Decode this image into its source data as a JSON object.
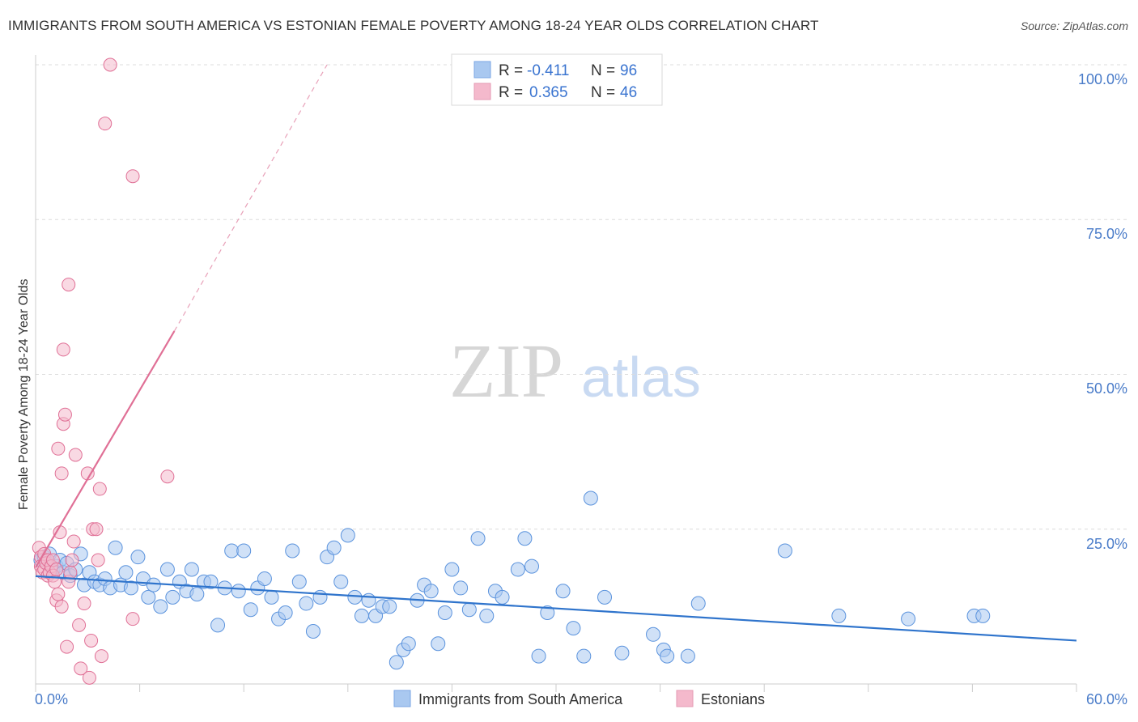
{
  "title": "IMMIGRANTS FROM SOUTH AMERICA VS ESTONIAN FEMALE POVERTY AMONG 18-24 YEAR OLDS CORRELATION CHART",
  "source": "Source: ZipAtlas.com",
  "watermark": {
    "zip": "ZIP",
    "atlas": "atlas"
  },
  "colors": {
    "blue": "#5b93dd",
    "blue_fill": "#a9c8f0",
    "pink": "#e07096",
    "pink_fill": "#f4b9cc",
    "tick": "#4a7cc9",
    "grid": "#dddddd"
  },
  "legend": {
    "rows": [
      {
        "r_label": "R =",
        "r_value": "-0.411",
        "n_label": "N =",
        "n_value": "96"
      },
      {
        "r_label": "R =",
        "r_value": "0.365",
        "n_label": "N =",
        "n_value": "46"
      }
    ]
  },
  "bottom_legend": [
    "Immigrants from South America",
    "Estonians"
  ],
  "chart_data": {
    "type": "scatter",
    "title": "IMMIGRANTS FROM SOUTH AMERICA VS ESTONIAN FEMALE POVERTY AMONG 18-24 YEAR OLDS CORRELATION CHART",
    "xlabel": "",
    "ylabel": "Female Poverty Among 18-24 Year Olds",
    "xlim": [
      0,
      60
    ],
    "ylim": [
      0,
      100
    ],
    "x_tick_labels": [
      "0.0%",
      "60.0%"
    ],
    "y_tick_values": [
      25,
      50,
      75,
      100
    ],
    "y_tick_labels": [
      "25.0%",
      "50.0%",
      "75.0%",
      "100.0%"
    ],
    "series": [
      {
        "name": "Immigrants from South America",
        "r": -0.411,
        "n": 96,
        "trend": {
          "x0": 0,
          "y0": 17.4,
          "x1": 60,
          "y1": 7.0
        },
        "points": [
          [
            0.3,
            20.0
          ],
          [
            0.5,
            20.5
          ],
          [
            0.7,
            19.5
          ],
          [
            0.8,
            21.0
          ],
          [
            1.0,
            18.5
          ],
          [
            1.2,
            19.0
          ],
          [
            1.4,
            20.0
          ],
          [
            1.6,
            18.0
          ],
          [
            1.8,
            19.5
          ],
          [
            2.0,
            17.5
          ],
          [
            2.3,
            18.5
          ],
          [
            2.6,
            21.0
          ],
          [
            2.8,
            16.0
          ],
          [
            3.1,
            18.0
          ],
          [
            3.4,
            16.5
          ],
          [
            3.7,
            16.0
          ],
          [
            4.0,
            17.0
          ],
          [
            4.3,
            15.5
          ],
          [
            4.6,
            22.0
          ],
          [
            4.9,
            16.0
          ],
          [
            5.2,
            18.0
          ],
          [
            5.5,
            15.5
          ],
          [
            5.9,
            20.5
          ],
          [
            6.2,
            17.0
          ],
          [
            6.5,
            14.0
          ],
          [
            6.8,
            16.0
          ],
          [
            7.2,
            12.5
          ],
          [
            7.6,
            18.5
          ],
          [
            7.9,
            14.0
          ],
          [
            8.3,
            16.5
          ],
          [
            8.7,
            15.0
          ],
          [
            9.0,
            18.5
          ],
          [
            9.3,
            14.5
          ],
          [
            9.7,
            16.5
          ],
          [
            10.1,
            16.5
          ],
          [
            10.5,
            9.5
          ],
          [
            10.9,
            15.5
          ],
          [
            11.3,
            21.5
          ],
          [
            11.7,
            15.0
          ],
          [
            12.0,
            21.5
          ],
          [
            12.4,
            12.0
          ],
          [
            12.8,
            15.5
          ],
          [
            13.2,
            17.0
          ],
          [
            13.6,
            14.0
          ],
          [
            14.0,
            10.5
          ],
          [
            14.4,
            11.5
          ],
          [
            14.8,
            21.5
          ],
          [
            15.2,
            16.5
          ],
          [
            15.6,
            13.0
          ],
          [
            16.0,
            8.5
          ],
          [
            16.4,
            14.0
          ],
          [
            16.8,
            20.5
          ],
          [
            17.2,
            22.0
          ],
          [
            17.6,
            16.5
          ],
          [
            18.0,
            24.0
          ],
          [
            18.4,
            14.0
          ],
          [
            18.8,
            11.0
          ],
          [
            19.2,
            13.5
          ],
          [
            19.6,
            11.0
          ],
          [
            20.0,
            12.5
          ],
          [
            20.4,
            12.5
          ],
          [
            20.8,
            3.5
          ],
          [
            21.2,
            5.5
          ],
          [
            21.5,
            6.5
          ],
          [
            22.0,
            13.5
          ],
          [
            22.4,
            16.0
          ],
          [
            22.8,
            15.0
          ],
          [
            23.2,
            6.5
          ],
          [
            23.6,
            11.5
          ],
          [
            24.0,
            18.5
          ],
          [
            24.5,
            15.5
          ],
          [
            25.0,
            12.0
          ],
          [
            25.5,
            23.5
          ],
          [
            26.0,
            11.0
          ],
          [
            26.5,
            15.0
          ],
          [
            26.9,
            14.0
          ],
          [
            27.8,
            18.5
          ],
          [
            28.2,
            23.5
          ],
          [
            28.6,
            19.0
          ],
          [
            29.0,
            4.5
          ],
          [
            29.5,
            11.5
          ],
          [
            30.4,
            15.0
          ],
          [
            31.0,
            9.0
          ],
          [
            31.6,
            4.5
          ],
          [
            32.0,
            30.0
          ],
          [
            32.8,
            14.0
          ],
          [
            33.8,
            5.0
          ],
          [
            35.6,
            8.0
          ],
          [
            36.2,
            5.5
          ],
          [
            36.4,
            4.5
          ],
          [
            37.6,
            4.5
          ],
          [
            38.2,
            13.0
          ],
          [
            43.2,
            21.5
          ],
          [
            46.3,
            11.0
          ],
          [
            50.3,
            10.5
          ],
          [
            54.1,
            11.0
          ],
          [
            54.6,
            11.0
          ]
        ]
      },
      {
        "name": "Estonians",
        "r": 0.365,
        "n": 46,
        "trend": {
          "x0": 0,
          "y0": 18.8,
          "x1": 8.0,
          "y1": 57.0,
          "dash_x1": 16.8,
          "dash_y1": 100
        },
        "points": [
          [
            0.2,
            22.0
          ],
          [
            0.3,
            20.5
          ],
          [
            0.3,
            19.0
          ],
          [
            0.4,
            18.0
          ],
          [
            0.5,
            21.0
          ],
          [
            0.5,
            18.5
          ],
          [
            0.6,
            19.5
          ],
          [
            0.7,
            17.5
          ],
          [
            0.7,
            20.0
          ],
          [
            0.8,
            18.0
          ],
          [
            0.9,
            19.0
          ],
          [
            1.0,
            17.5
          ],
          [
            1.0,
            20.0
          ],
          [
            1.1,
            16.5
          ],
          [
            1.2,
            13.5
          ],
          [
            1.2,
            18.5
          ],
          [
            1.3,
            14.5
          ],
          [
            1.3,
            38.0
          ],
          [
            1.4,
            24.5
          ],
          [
            1.5,
            12.5
          ],
          [
            1.5,
            34.0
          ],
          [
            1.6,
            54.0
          ],
          [
            1.6,
            42.0
          ],
          [
            1.7,
            43.5
          ],
          [
            1.8,
            6.0
          ],
          [
            1.9,
            64.5
          ],
          [
            1.9,
            16.5
          ],
          [
            2.0,
            18.0
          ],
          [
            2.1,
            20.0
          ],
          [
            2.2,
            23.0
          ],
          [
            2.3,
            37.0
          ],
          [
            2.5,
            9.5
          ],
          [
            2.6,
            2.5
          ],
          [
            2.8,
            13.0
          ],
          [
            3.0,
            34.0
          ],
          [
            3.1,
            1.0
          ],
          [
            3.2,
            7.0
          ],
          [
            3.3,
            25.0
          ],
          [
            3.5,
            25.0
          ],
          [
            3.7,
            31.5
          ],
          [
            3.6,
            20.0
          ],
          [
            3.8,
            4.5
          ],
          [
            4.3,
            100.0
          ],
          [
            5.6,
            82.0
          ],
          [
            5.6,
            10.5
          ],
          [
            7.6,
            33.5
          ]
        ]
      }
    ],
    "extra_points_pink": [
      [
        4.0,
        90.5
      ]
    ]
  }
}
